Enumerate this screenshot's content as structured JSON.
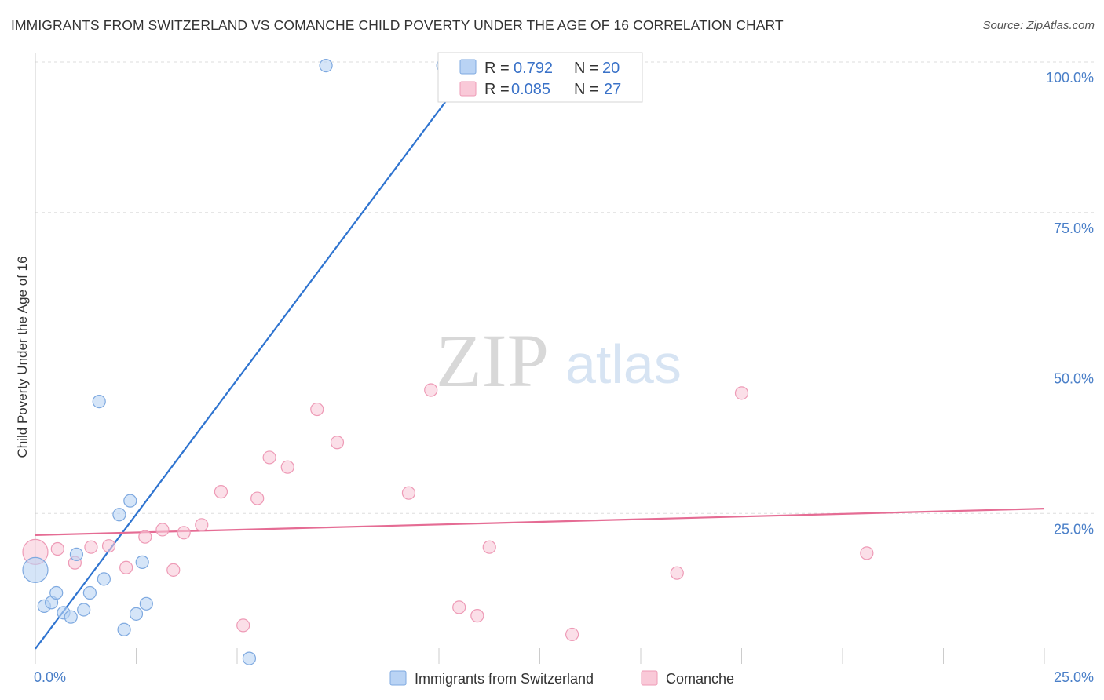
{
  "title": "IMMIGRANTS FROM SWITZERLAND VS COMANCHE CHILD POVERTY UNDER THE AGE OF 16 CORRELATION CHART",
  "source": "Source: ZipAtlas.com",
  "watermark": {
    "zip": "ZIP",
    "atlas": "atlas"
  },
  "chart_data": {
    "type": "scatter",
    "title": "IMMIGRANTS FROM SWITZERLAND VS COMANCHE CHILD POVERTY UNDER THE AGE OF 16 CORRELATION CHART",
    "xlabel": "",
    "ylabel": "Child Poverty Under the Age of 16",
    "xlim": [
      0,
      25
    ],
    "ylim": [
      0,
      100
    ],
    "x_tick_labels": [
      {
        "value": 0,
        "label": "0.0%"
      },
      {
        "value": 25,
        "label": "25.0%"
      }
    ],
    "y_tick_labels": [
      {
        "value": 25,
        "label": "25.0%"
      },
      {
        "value": 50,
        "label": "50.0%"
      },
      {
        "value": 75,
        "label": "75.0%"
      },
      {
        "value": 100,
        "label": "100.0%"
      }
    ],
    "grid": true,
    "legend_position": "top-center",
    "colors": {
      "switzerland_fill": "#b9d3f4",
      "switzerland_stroke": "#7ea9e0",
      "switzerland_line": "#2f74d0",
      "comanche_fill": "#f9c9d8",
      "comanche_stroke": "#ee9ab6",
      "comanche_line": "#e56c94"
    },
    "series": [
      {
        "name": "Immigrants from Switzerland",
        "R": "0.792",
        "N": "20",
        "trend": {
          "x1": 0,
          "y1": 2.5,
          "x2": 10.9,
          "y2": 100
        },
        "points": [
          {
            "x": 0.0,
            "y": 15.6,
            "big": true
          },
          {
            "x": 0.22,
            "y": 9.6
          },
          {
            "x": 0.4,
            "y": 10.2
          },
          {
            "x": 0.52,
            "y": 11.8
          },
          {
            "x": 0.7,
            "y": 8.5
          },
          {
            "x": 0.88,
            "y": 7.8
          },
          {
            "x": 1.02,
            "y": 18.2
          },
          {
            "x": 1.2,
            "y": 9.0
          },
          {
            "x": 1.35,
            "y": 11.8
          },
          {
            "x": 1.58,
            "y": 43.6
          },
          {
            "x": 1.7,
            "y": 14.1
          },
          {
            "x": 2.08,
            "y": 24.8
          },
          {
            "x": 2.2,
            "y": 5.7
          },
          {
            "x": 2.35,
            "y": 27.1
          },
          {
            "x": 2.5,
            "y": 8.3
          },
          {
            "x": 2.65,
            "y": 16.9
          },
          {
            "x": 2.75,
            "y": 10.0
          },
          {
            "x": 5.3,
            "y": 0.9
          },
          {
            "x": 7.2,
            "y": 99.4
          },
          {
            "x": 10.1,
            "y": 99.4
          }
        ]
      },
      {
        "name": "Comanche",
        "R": "0.085",
        "N": "27",
        "trend": {
          "x1": 0,
          "y1": 21.4,
          "x2": 25,
          "y2": 25.8
        },
        "points": [
          {
            "x": 0.0,
            "y": 18.6,
            "big": true
          },
          {
            "x": 0.55,
            "y": 19.1
          },
          {
            "x": 0.98,
            "y": 16.8
          },
          {
            "x": 1.38,
            "y": 19.4
          },
          {
            "x": 1.82,
            "y": 19.6
          },
          {
            "x": 2.25,
            "y": 16.0
          },
          {
            "x": 2.72,
            "y": 21.1
          },
          {
            "x": 3.15,
            "y": 22.3
          },
          {
            "x": 3.42,
            "y": 15.6
          },
          {
            "x": 3.68,
            "y": 21.8
          },
          {
            "x": 4.12,
            "y": 23.1
          },
          {
            "x": 4.6,
            "y": 28.6
          },
          {
            "x": 5.15,
            "y": 6.4
          },
          {
            "x": 5.5,
            "y": 27.5
          },
          {
            "x": 5.8,
            "y": 34.3
          },
          {
            "x": 6.25,
            "y": 32.7
          },
          {
            "x": 6.98,
            "y": 42.3
          },
          {
            "x": 7.48,
            "y": 36.8
          },
          {
            "x": 9.25,
            "y": 28.4
          },
          {
            "x": 9.8,
            "y": 45.5
          },
          {
            "x": 10.5,
            "y": 9.4
          },
          {
            "x": 10.95,
            "y": 8.0
          },
          {
            "x": 11.25,
            "y": 19.4
          },
          {
            "x": 13.3,
            "y": 4.9
          },
          {
            "x": 15.9,
            "y": 15.1
          },
          {
            "x": 17.5,
            "y": 45.0
          },
          {
            "x": 20.6,
            "y": 18.4
          }
        ]
      }
    ]
  },
  "legend_box": {
    "r_label": "R =",
    "n_label": "N ="
  }
}
